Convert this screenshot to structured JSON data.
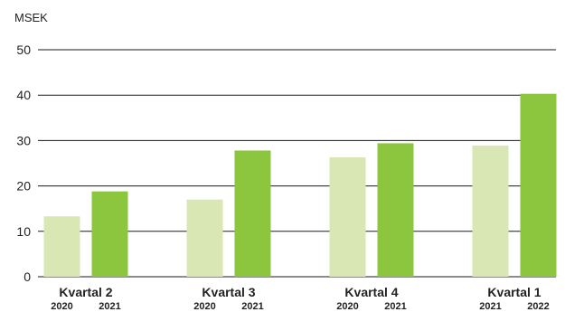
{
  "chart_data": {
    "type": "bar",
    "unit_label": "MSEK",
    "ylim": [
      0,
      50
    ],
    "yticks": [
      0,
      10,
      20,
      30,
      40,
      50
    ],
    "grid": true,
    "groups": [
      {
        "label": "Kvartal 2",
        "bars": [
          {
            "year": "2020",
            "value": 13.3
          },
          {
            "year": "2021",
            "value": 18.8
          }
        ]
      },
      {
        "label": "Kvartal 3",
        "bars": [
          {
            "year": "2020",
            "value": 17.0
          },
          {
            "year": "2021",
            "value": 27.8
          }
        ]
      },
      {
        "label": "Kvartal 4",
        "bars": [
          {
            "year": "2020",
            "value": 26.3
          },
          {
            "year": "2021",
            "value": 29.4
          }
        ]
      },
      {
        "label": "Kvartal 1",
        "bars": [
          {
            "year": "2021",
            "value": 28.9
          },
          {
            "year": "2022",
            "value": 40.3
          }
        ]
      }
    ],
    "colors": {
      "previous": "#d8e7b3",
      "current": "#8cc63f",
      "grid": "#1a1a1a"
    }
  }
}
